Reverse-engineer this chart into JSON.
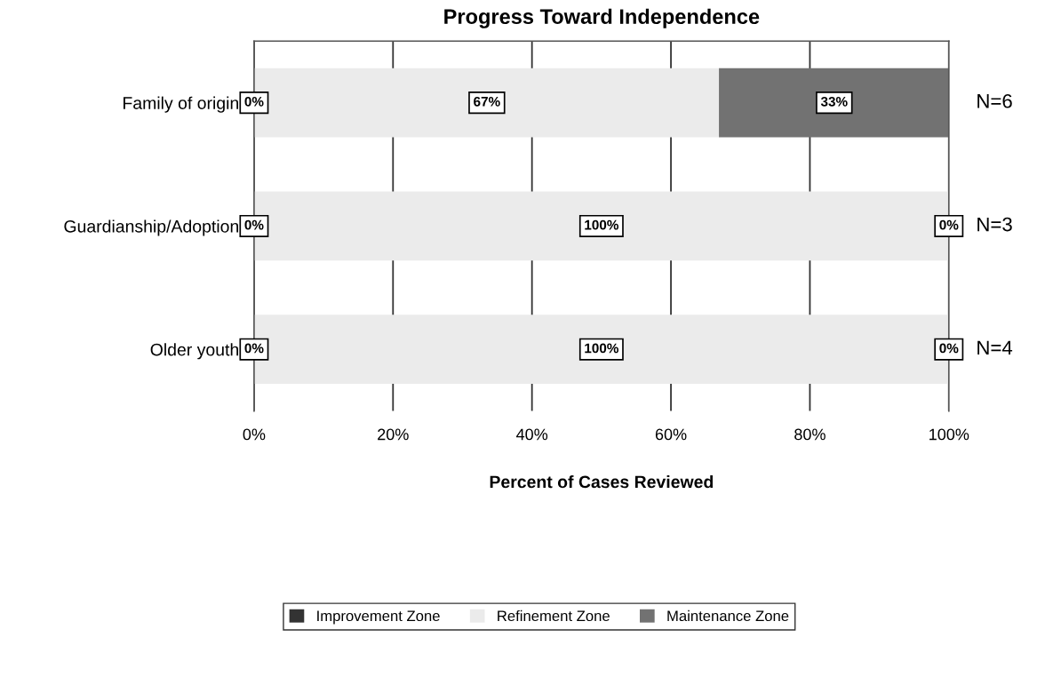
{
  "chart_data": {
    "type": "bar",
    "orientation": "horizontal",
    "stacked": true,
    "title": "Progress Toward Independence",
    "xlabel": "Percent of Cases Reviewed",
    "categories": [
      "Family of origin",
      "Guardianship/Adoption",
      "Older youth"
    ],
    "series": [
      {
        "name": "Improvement Zone",
        "color": "#333333",
        "values": [
          0,
          0,
          0
        ],
        "value_labels": [
          "0%",
          "0%",
          "0%"
        ]
      },
      {
        "name": "Refinement Zone",
        "color": "#ebebeb",
        "values": [
          67,
          100,
          100
        ],
        "value_labels": [
          "67%",
          "100%",
          "100%"
        ]
      },
      {
        "name": "Maintenance Zone",
        "color": "#727272",
        "values": [
          33,
          0,
          0
        ],
        "value_labels": [
          "33%",
          "0%",
          "0%"
        ]
      }
    ],
    "xlim": [
      0,
      100
    ],
    "xticks": [
      {
        "value": 0,
        "label": "0%"
      },
      {
        "value": 20,
        "label": "20%"
      },
      {
        "value": 40,
        "label": "40%"
      },
      {
        "value": 60,
        "label": "60%"
      },
      {
        "value": 80,
        "label": "80%"
      },
      {
        "value": 100,
        "label": "100%"
      }
    ],
    "grid": "x",
    "legend": "bottom",
    "annotations": [
      "N=6",
      "N=3",
      "N=4"
    ]
  }
}
